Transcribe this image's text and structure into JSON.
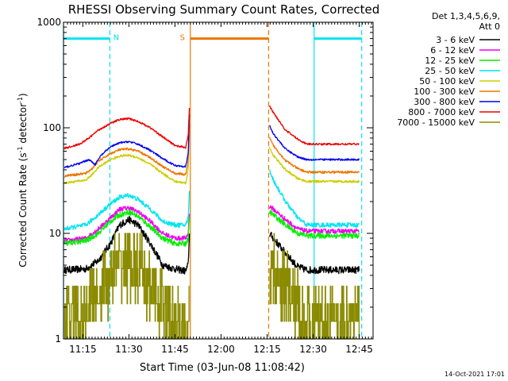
{
  "chart_data": {
    "type": "line",
    "title": "RHESSI Observing Summary Count Rates, Corrected",
    "xlabel": "Start Time (03-Jun-08 11:08:42)",
    "ylabel_main": "Corrected Count Rate (s",
    "ylabel_sup1": "-1",
    "ylabel_mid": " detector",
    "ylabel_sup2": "-1",
    "ylabel_end": ")",
    "y_scale": "log",
    "ylim": [
      1,
      1000
    ],
    "xlim_minutes": [
      668.7,
      769.5
    ],
    "x_ticks": [
      {
        "m": 675,
        "label": "11:15"
      },
      {
        "m": 690,
        "label": "11:30"
      },
      {
        "m": 705,
        "label": "11:45"
      },
      {
        "m": 720,
        "label": "12:00"
      },
      {
        "m": 735,
        "label": "12:15"
      },
      {
        "m": 750,
        "label": "12:30"
      },
      {
        "m": 765,
        "label": "12:45"
      }
    ],
    "y_ticks": [
      {
        "v": 1,
        "label": "1"
      },
      {
        "v": 10,
        "label": "10"
      },
      {
        "v": 100,
        "label": "100"
      },
      {
        "v": 1000,
        "label": "1000"
      }
    ],
    "legend_header": [
      "Det 1,3,4,5,6,9,",
      "Att 0"
    ],
    "timestamp": "14-Oct-2021 17:01",
    "markers": [
      {
        "label": "N",
        "start": 668.7,
        "end": 683.8,
        "level": 700,
        "color": "#00e5ee",
        "dashed_at": 683.8,
        "solid_at": 668.7
      },
      {
        "label": "S",
        "start": 710.0,
        "end": 735.5,
        "level": 700,
        "color": "#ee7600"
      },
      {
        "label": "",
        "start": 750.3,
        "end": 765.8,
        "level": 700,
        "color": "#00e5ee"
      }
    ],
    "vlines": [
      {
        "m": 668.7,
        "color": "#00e5ee",
        "dashed": false
      },
      {
        "m": 683.8,
        "color": "#00e5ee",
        "dashed": true
      },
      {
        "m": 710.0,
        "color": "#ee7600",
        "dashed": false
      },
      {
        "m": 735.5,
        "color": "#ee7600",
        "dashed": true
      },
      {
        "m": 750.3,
        "color": "#00e5ee",
        "dashed": false
      },
      {
        "m": 765.8,
        "color": "#00e5ee",
        "dashed": true
      }
    ],
    "series": [
      {
        "name": "3 - 6 keV",
        "color": "#000000",
        "noise": 0.08,
        "points": [
          [
            669,
            4.5
          ],
          [
            676,
            4.6
          ],
          [
            680,
            5.5
          ],
          [
            684,
            8
          ],
          [
            687,
            12
          ],
          [
            690,
            13.5
          ],
          [
            693,
            12
          ],
          [
            697,
            8
          ],
          [
            701,
            5
          ],
          [
            705,
            4.6
          ],
          [
            708.5,
            4.4
          ],
          [
            709.3,
            5
          ],
          [
            709.7,
            10
          ]
        ],
        "points2": [
          [
            735.8,
            10
          ],
          [
            737,
            9
          ],
          [
            741,
            6.5
          ],
          [
            745,
            4.8
          ],
          [
            748,
            4.5
          ],
          [
            765,
            4.5
          ]
        ]
      },
      {
        "name": "6 - 12 keV",
        "color": "#ee00ee",
        "noise": 0.05,
        "points": [
          [
            669,
            8.5
          ],
          [
            676,
            9
          ],
          [
            680,
            11
          ],
          [
            684,
            14
          ],
          [
            687,
            17
          ],
          [
            690,
            17.5
          ],
          [
            693,
            16
          ],
          [
            697,
            13
          ],
          [
            701,
            10
          ],
          [
            705,
            9
          ],
          [
            708.5,
            9
          ],
          [
            709.3,
            10
          ],
          [
            709.7,
            16
          ]
        ],
        "points2": [
          [
            735.8,
            18
          ],
          [
            737,
            17
          ],
          [
            741,
            13.5
          ],
          [
            745,
            11
          ],
          [
            748,
            10.5
          ],
          [
            765,
            10.5
          ]
        ]
      },
      {
        "name": "12 - 25 keV",
        "color": "#00ee00",
        "noise": 0.06,
        "points": [
          [
            669,
            8
          ],
          [
            676,
            8.5
          ],
          [
            680,
            10
          ],
          [
            684,
            13
          ],
          [
            687,
            15
          ],
          [
            690,
            16
          ],
          [
            693,
            14.5
          ],
          [
            697,
            11.5
          ],
          [
            701,
            9
          ],
          [
            705,
            8
          ],
          [
            708.5,
            8
          ],
          [
            709.3,
            9
          ],
          [
            709.7,
            14
          ]
        ],
        "points2": [
          [
            735.8,
            16
          ],
          [
            737,
            15
          ],
          [
            741,
            12
          ],
          [
            745,
            10
          ],
          [
            748,
            9.5
          ],
          [
            765,
            9.5
          ]
        ]
      },
      {
        "name": "25 - 50 keV",
        "color": "#00e5ee",
        "noise": 0.05,
        "points": [
          [
            669,
            11
          ],
          [
            676,
            12
          ],
          [
            680,
            15
          ],
          [
            684,
            19
          ],
          [
            687,
            22
          ],
          [
            690,
            23
          ],
          [
            693,
            21
          ],
          [
            697,
            17
          ],
          [
            701,
            13
          ],
          [
            705,
            12
          ],
          [
            708.5,
            12
          ],
          [
            709.3,
            14
          ],
          [
            709.7,
            25
          ]
        ],
        "points2": [
          [
            735.8,
            40
          ],
          [
            737,
            32
          ],
          [
            741,
            20
          ],
          [
            745,
            14
          ],
          [
            748,
            12
          ],
          [
            765,
            12
          ]
        ]
      },
      {
        "name": "50 - 100 keV",
        "color": "#cdcd00",
        "noise": 0.025,
        "points": [
          [
            669,
            30
          ],
          [
            676,
            32
          ],
          [
            678,
            36
          ],
          [
            680,
            42
          ],
          [
            684,
            50
          ],
          [
            687,
            54
          ],
          [
            690,
            55
          ],
          [
            693,
            52
          ],
          [
            697,
            45
          ],
          [
            701,
            37
          ],
          [
            705,
            31
          ],
          [
            708.5,
            30
          ],
          [
            709.3,
            40
          ],
          [
            709.7,
            90
          ]
        ],
        "points2": [
          [
            735.8,
            65
          ],
          [
            737,
            55
          ],
          [
            741,
            40
          ],
          [
            745,
            33
          ],
          [
            748,
            31
          ],
          [
            765,
            31
          ]
        ]
      },
      {
        "name": "100 - 300 keV",
        "color": "#ee7600",
        "noise": 0.025,
        "points": [
          [
            669,
            35
          ],
          [
            676,
            37
          ],
          [
            678,
            41
          ],
          [
            680,
            48
          ],
          [
            684,
            57
          ],
          [
            687,
            62
          ],
          [
            690,
            63
          ],
          [
            693,
            60
          ],
          [
            697,
            52
          ],
          [
            701,
            43
          ],
          [
            705,
            37
          ],
          [
            708.5,
            36
          ],
          [
            709.3,
            48
          ],
          [
            709.7,
            110
          ]
        ],
        "points2": [
          [
            735.8,
            80
          ],
          [
            737,
            68
          ],
          [
            741,
            49
          ],
          [
            745,
            41
          ],
          [
            748,
            38
          ],
          [
            765,
            38
          ]
        ]
      },
      {
        "name": "300 - 800 keV",
        "color": "#0000ee",
        "noise": 0.02,
        "points": [
          [
            669,
            42
          ],
          [
            674,
            46
          ],
          [
            677,
            50
          ],
          [
            679,
            45
          ],
          [
            681,
            55
          ],
          [
            684,
            66
          ],
          [
            687,
            72
          ],
          [
            690,
            74
          ],
          [
            693,
            70
          ],
          [
            697,
            61
          ],
          [
            701,
            51
          ],
          [
            705,
            44
          ],
          [
            708.5,
            43
          ],
          [
            709.3,
            57
          ],
          [
            709.7,
            140
          ]
        ],
        "points2": [
          [
            735.8,
            105
          ],
          [
            737,
            88
          ],
          [
            741,
            63
          ],
          [
            745,
            53
          ],
          [
            748,
            50
          ],
          [
            765,
            50
          ]
        ]
      },
      {
        "name": "800 - 7000 keV",
        "color": "#ee0000",
        "noise": 0.02,
        "points": [
          [
            669,
            64
          ],
          [
            674,
            70
          ],
          [
            677,
            80
          ],
          [
            680,
            95
          ],
          [
            684,
            110
          ],
          [
            687,
            120
          ],
          [
            690,
            122
          ],
          [
            693,
            115
          ],
          [
            697,
            100
          ],
          [
            701,
            82
          ],
          [
            705,
            68
          ],
          [
            708.5,
            65
          ],
          [
            709.3,
            85
          ],
          [
            709.7,
            160
          ]
        ],
        "points2": [
          [
            735.8,
            160
          ],
          [
            737,
            140
          ],
          [
            741,
            95
          ],
          [
            745,
            78
          ],
          [
            748,
            70
          ],
          [
            765,
            70
          ]
        ]
      },
      {
        "name": "7000 - 15000 keV",
        "color": "#8b8b00",
        "noise": 0.3,
        "step": true,
        "points": [
          [
            669,
            1.5
          ],
          [
            676,
            2
          ],
          [
            680,
            2.8
          ],
          [
            684,
            4
          ],
          [
            687,
            5
          ],
          [
            690,
            5.3
          ],
          [
            693,
            4.5
          ],
          [
            697,
            3
          ],
          [
            701,
            2
          ],
          [
            705,
            1.4
          ],
          [
            708.5,
            1.3
          ],
          [
            709.3,
            1.6
          ],
          [
            709.7,
            3
          ]
        ],
        "points2": [
          [
            735.8,
            4
          ],
          [
            737,
            4
          ],
          [
            741,
            3
          ],
          [
            745,
            2
          ],
          [
            748,
            1.5
          ],
          [
            765,
            1.5
          ]
        ]
      }
    ]
  }
}
